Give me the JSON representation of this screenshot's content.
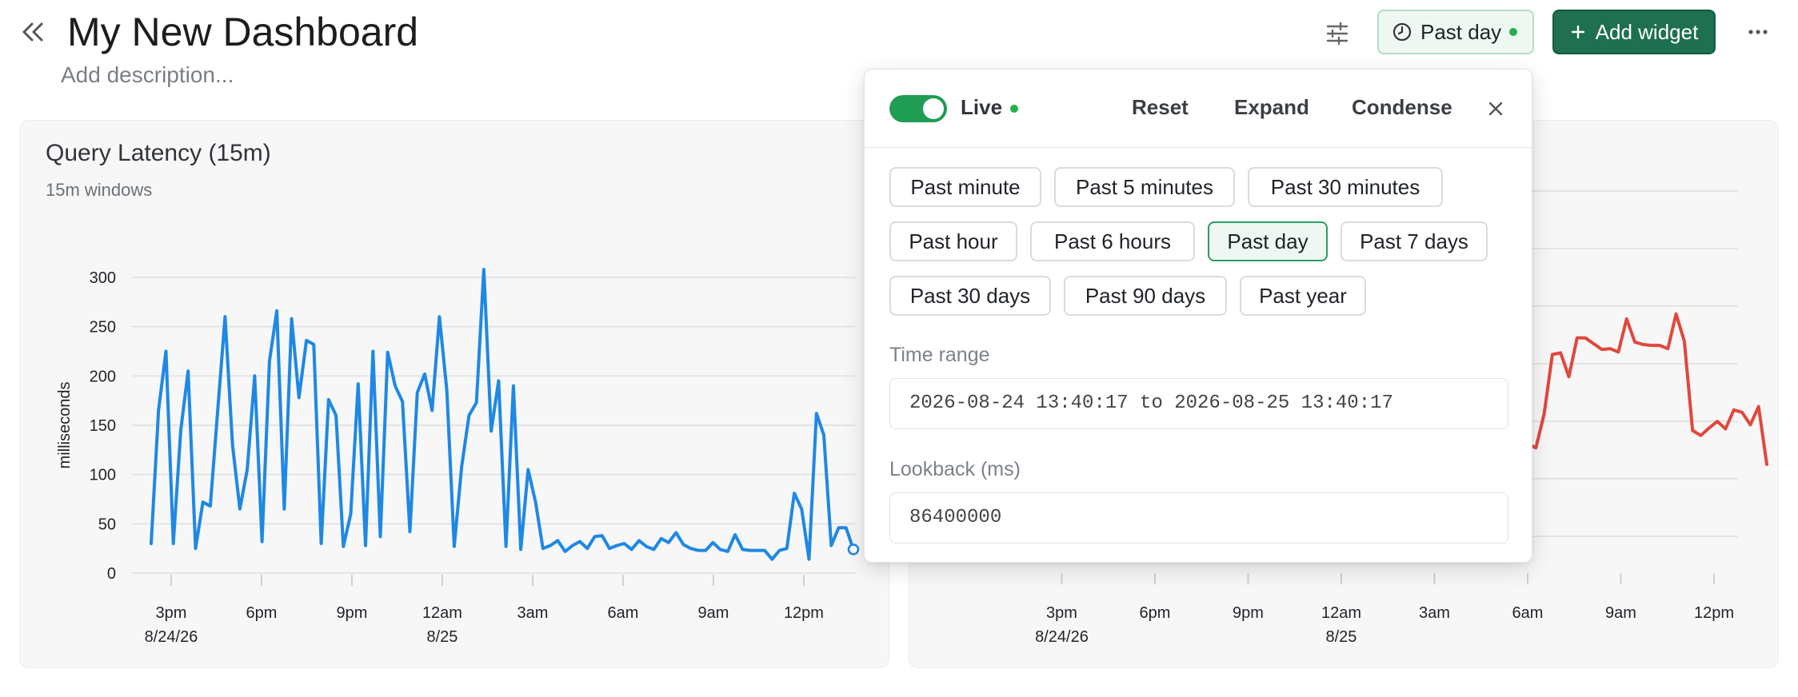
{
  "header": {
    "title": "My New Dashboard",
    "description_placeholder": "Add description...",
    "time_button_label": "Past day",
    "add_widget_label": "Add widget"
  },
  "icons": {
    "collapse": "double-chevron-left-icon",
    "filter": "sliders-icon",
    "clock": "clock-icon",
    "plus": "plus-icon",
    "more": "more-horizontal-icon",
    "close": "close-icon"
  },
  "colors": {
    "accent": "#1e7050",
    "live": "#22b14c",
    "series_left": "#1e88e5",
    "series_right": "#e0483c"
  },
  "popover": {
    "live_label": "Live",
    "live_enabled": true,
    "reset_label": "Reset",
    "expand_label": "Expand",
    "condense_label": "Condense",
    "presets": [
      "Past minute",
      "Past 5 minutes",
      "Past 30 minutes",
      "Past hour",
      "Past 6 hours",
      "Past day",
      "Past 7 days",
      "Past 30 days",
      "Past 90 days",
      "Past year"
    ],
    "selected_preset": "Past day",
    "time_range_label": "Time range",
    "time_range_value": "2026-08-24 13:40:17 to 2026-08-25 13:40:17",
    "lookback_label": "Lookback (ms)",
    "lookback_value": "86400000"
  },
  "left_panel": {
    "title": "Query Latency (15m)",
    "subtitle": "15m windows"
  },
  "chart_data": [
    {
      "type": "line",
      "title": "Query Latency (15m)",
      "subtitle": "15m windows",
      "xlabel": "",
      "ylabel": "milliseconds",
      "ylim": [
        0,
        300
      ],
      "yticks": [
        "0",
        "50",
        "100",
        "150",
        "200",
        "250",
        "300"
      ],
      "x_range_hours": [
        13.7,
        37.7
      ],
      "xticks": [
        {
          "hour": 15,
          "label": "3pm",
          "sub": "8/24/26"
        },
        {
          "hour": 18,
          "label": "6pm",
          "sub": ""
        },
        {
          "hour": 21,
          "label": "9pm",
          "sub": ""
        },
        {
          "hour": 24,
          "label": "12am",
          "sub": "8/25"
        },
        {
          "hour": 27,
          "label": "3am",
          "sub": ""
        },
        {
          "hour": 30,
          "label": "6am",
          "sub": ""
        },
        {
          "hour": 33,
          "label": "9am",
          "sub": ""
        },
        {
          "hour": 36,
          "label": "12pm",
          "sub": ""
        }
      ],
      "grid": true,
      "series": [
        {
          "color": "#1e88e5",
          "values": [
            30,
            165,
            225,
            30,
            145,
            205,
            25,
            72,
            68,
            165,
            260,
            130,
            65,
            105,
            200,
            32,
            215,
            266,
            65,
            258,
            178,
            236,
            232,
            30,
            176,
            160,
            27,
            60,
            192,
            28,
            225,
            37,
            224,
            190,
            174,
            42,
            183,
            202,
            165,
            260,
            185,
            27,
            108,
            160,
            173,
            308,
            144,
            195,
            27,
            190,
            24,
            105,
            72,
            25,
            28,
            33,
            22,
            28,
            32,
            25,
            37,
            38,
            25,
            28,
            30,
            24,
            33,
            27,
            24,
            35,
            31,
            41,
            29,
            25,
            23,
            23,
            31,
            24,
            22,
            39,
            24,
            23,
            23,
            23,
            14,
            23,
            25,
            81,
            65,
            14,
            162,
            140,
            28,
            46,
            46,
            24
          ]
        }
      ]
    },
    {
      "type": "line",
      "title": "",
      "xlabel": "",
      "ylabel": "",
      "x_range_hours": [
        13.7,
        37.7
      ],
      "xticks": [
        {
          "hour": 15,
          "label": "3pm",
          "sub": "8/24/26"
        },
        {
          "hour": 18,
          "label": "6pm",
          "sub": ""
        },
        {
          "hour": 21,
          "label": "9pm",
          "sub": ""
        },
        {
          "hour": 24,
          "label": "12am",
          "sub": "8/25"
        },
        {
          "hour": 27,
          "label": "3am",
          "sub": ""
        },
        {
          "hour": 30,
          "label": "6am",
          "sub": ""
        },
        {
          "hour": 33,
          "label": "9am",
          "sub": ""
        },
        {
          "hour": 36,
          "label": "12pm",
          "sub": ""
        }
      ],
      "grid": true,
      "visible_series_hours": [
        30.0,
        37.7
      ],
      "series": [
        {
          "color": "#e0483c",
          "values": [
            112,
            107,
            148,
            220,
            222,
            193,
            240,
            240,
            233,
            226,
            227,
            223,
            263,
            235,
            232,
            231,
            231,
            227,
            269,
            236,
            128,
            122,
            131,
            139,
            130,
            153,
            150,
            135,
            157,
            87
          ]
        }
      ]
    }
  ]
}
